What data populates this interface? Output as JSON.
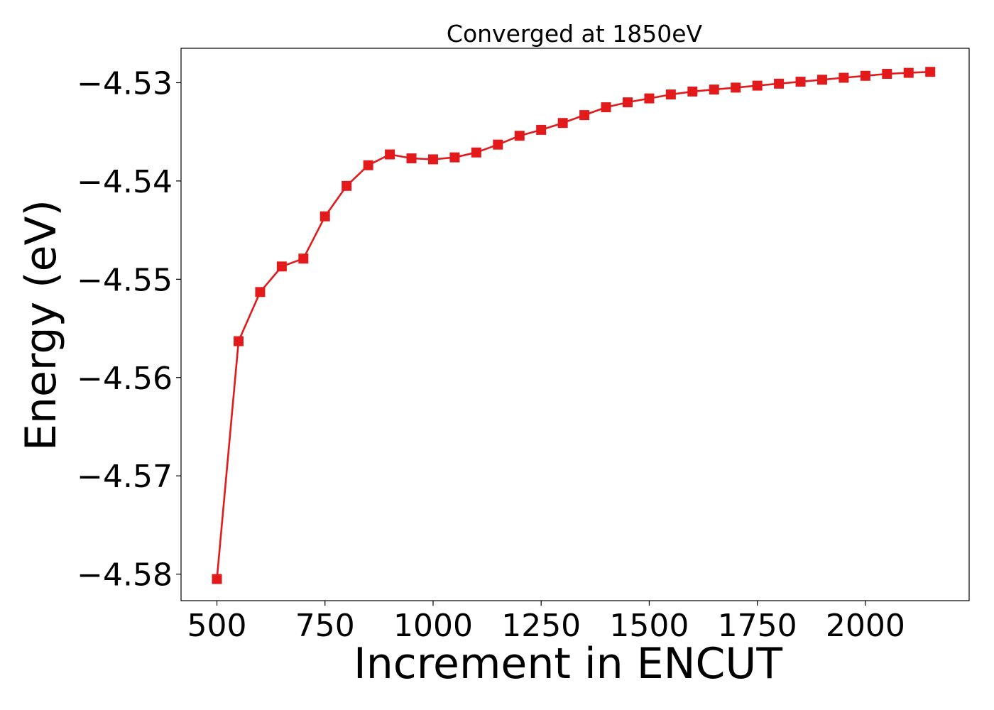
{
  "chart_data": {
    "type": "line",
    "title": "Converged at 1850eV",
    "xlabel": "Increment in ENCUT",
    "ylabel": "Energy (eV)",
    "xlim": [
      417,
      2240
    ],
    "ylim": [
      -4.5827,
      -4.5265
    ],
    "x_ticks": [
      500,
      750,
      1000,
      1250,
      1500,
      1750,
      2000
    ],
    "x_tick_labels": [
      "500",
      "750",
      "1000",
      "1250",
      "1500",
      "1750",
      "2000"
    ],
    "y_ticks": [
      -4.58,
      -4.57,
      -4.56,
      -4.55,
      -4.54,
      -4.53
    ],
    "y_tick_labels": [
      "−4.58",
      "−4.57",
      "−4.56",
      "−4.55",
      "−4.54",
      "−4.53"
    ],
    "grid": false,
    "legend": "none",
    "series": [
      {
        "color": "#e31a1c",
        "marker": "square",
        "x": [
          500,
          550,
          600,
          650,
          700,
          750,
          800,
          850,
          900,
          950,
          1000,
          1050,
          1100,
          1150,
          1200,
          1250,
          1300,
          1350,
          1400,
          1450,
          1500,
          1550,
          1600,
          1650,
          1700,
          1750,
          1800,
          1850,
          1900,
          1950,
          2000,
          2050,
          2100,
          2150
        ],
        "y": [
          -4.5805,
          -4.5563,
          -4.5513,
          -4.5487,
          -4.5479,
          -4.5436,
          -4.5405,
          -4.5384,
          -4.5373,
          -4.5377,
          -4.5378,
          -4.5376,
          -4.5371,
          -4.5363,
          -4.5354,
          -4.5348,
          -4.5341,
          -4.5333,
          -4.5325,
          -4.532,
          -4.5316,
          -4.5312,
          -4.5309,
          -4.5307,
          -4.5305,
          -4.5303,
          -4.5301,
          -4.5299,
          -4.5297,
          -4.5295,
          -4.5293,
          -4.5291,
          -4.529,
          -4.5289
        ]
      }
    ]
  }
}
